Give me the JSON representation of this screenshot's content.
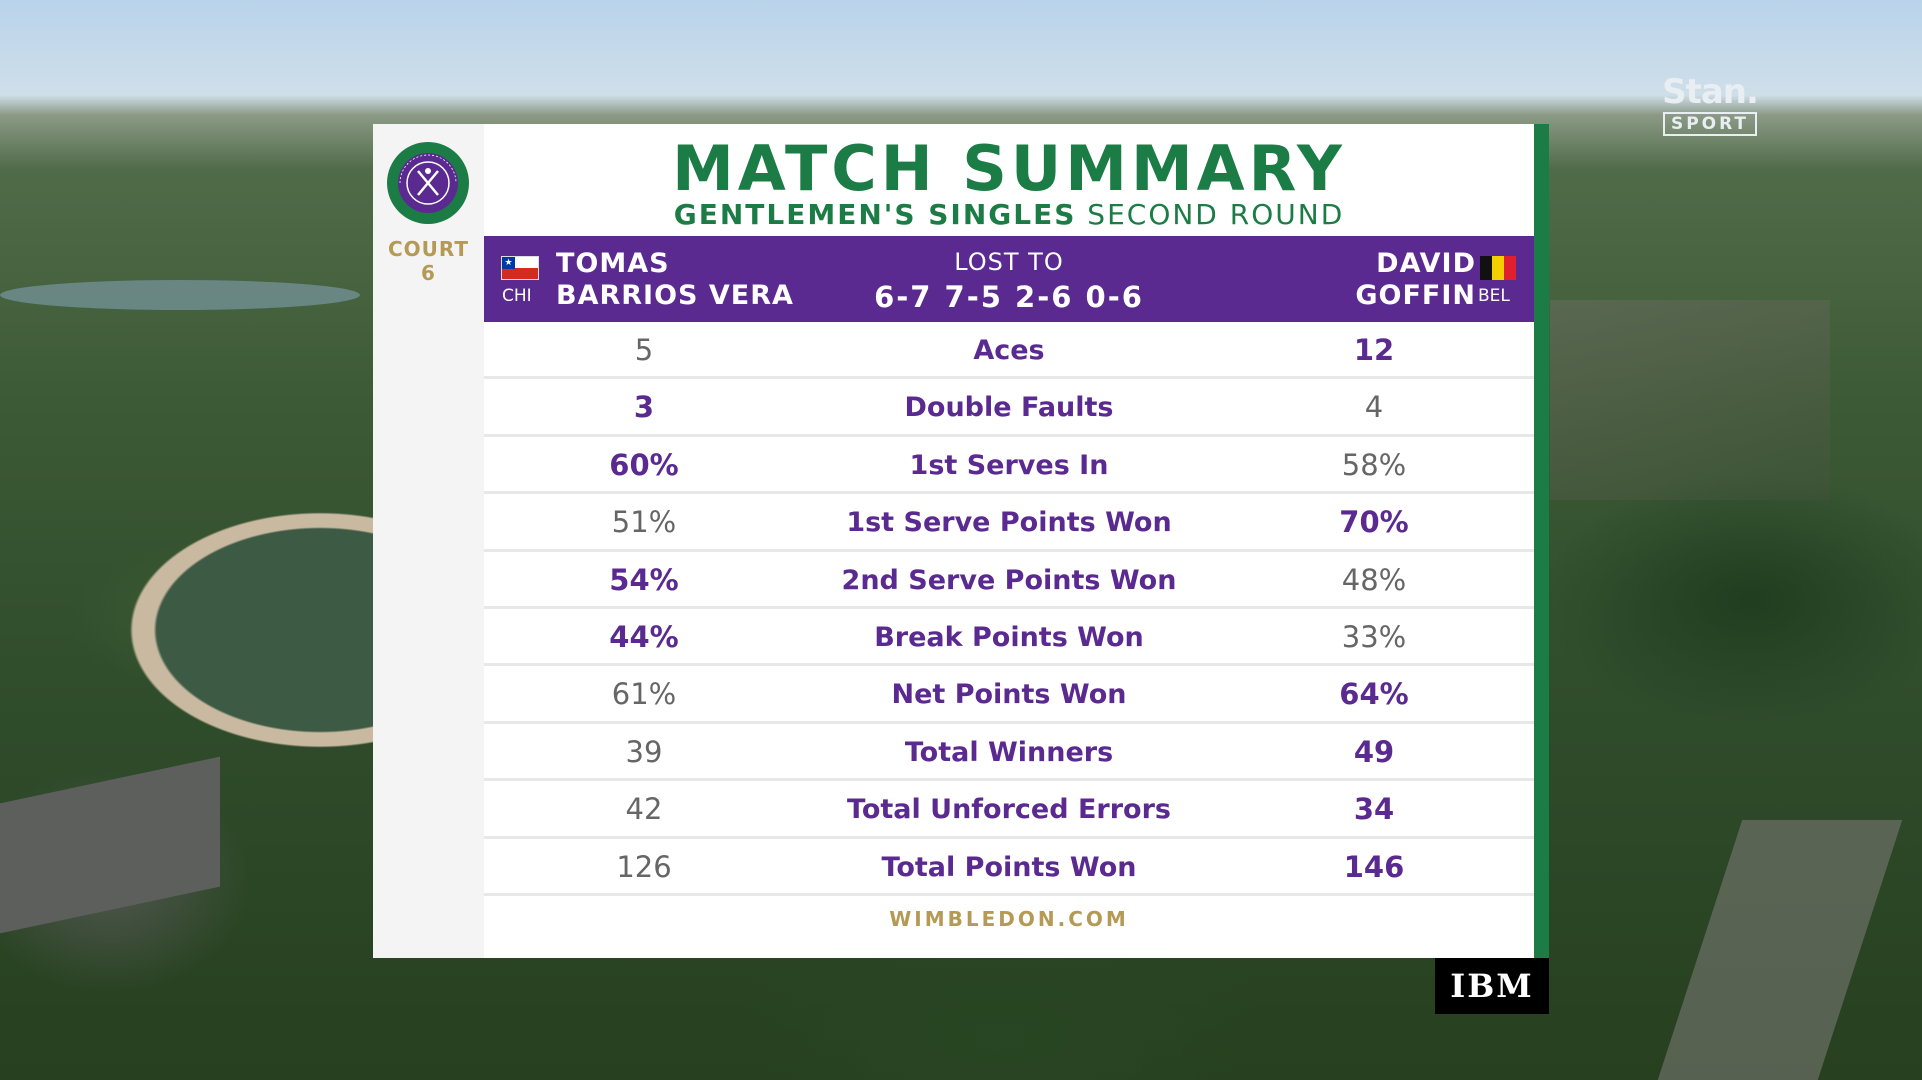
{
  "broadcaster": {
    "name": "Stan.",
    "sub": "SPORT"
  },
  "tournament_logo": {
    "ring_text": "THE CHAMPIONSHIPS WIMBLEDON"
  },
  "court": {
    "label": "COURT",
    "number": "6"
  },
  "title": "MATCH SUMMARY",
  "subtitle": {
    "event": "GENTLEMEN'S SINGLES",
    "round": "SECOND ROUND"
  },
  "header": {
    "player1": {
      "first": "TOMAS",
      "last": "BARRIOS VERA",
      "country": "CHI"
    },
    "player2": {
      "first": "DAVID",
      "last": "GOFFIN",
      "country": "BEL"
    },
    "result": "LOST TO",
    "score": "6-7 7-5 2-6 0-6"
  },
  "stats": [
    {
      "label": "Aces",
      "p1": "5",
      "p2": "12",
      "leader": "p2"
    },
    {
      "label": "Double Faults",
      "p1": "3",
      "p2": "4",
      "leader": "p1"
    },
    {
      "label": "1st Serves In",
      "p1": "60%",
      "p2": "58%",
      "leader": "p1"
    },
    {
      "label": "1st Serve Points Won",
      "p1": "51%",
      "p2": "70%",
      "leader": "p2"
    },
    {
      "label": "2nd Serve Points Won",
      "p1": "54%",
      "p2": "48%",
      "leader": "p1"
    },
    {
      "label": "Break Points Won",
      "p1": "44%",
      "p2": "33%",
      "leader": "p1"
    },
    {
      "label": "Net Points Won",
      "p1": "61%",
      "p2": "64%",
      "leader": "p2"
    },
    {
      "label": "Total Winners",
      "p1": "39",
      "p2": "49",
      "leader": "p2"
    },
    {
      "label": "Total Unforced Errors",
      "p1": "42",
      "p2": "34",
      "leader": "p2"
    },
    {
      "label": "Total Points Won",
      "p1": "126",
      "p2": "146",
      "leader": "p2"
    }
  ],
  "footer": "WIMBLEDON.COM",
  "sponsor": "IBM",
  "colors": {
    "purple": "#5a2a91",
    "green": "#1b7c45",
    "gold": "#b49a55",
    "muted": "#666666"
  }
}
